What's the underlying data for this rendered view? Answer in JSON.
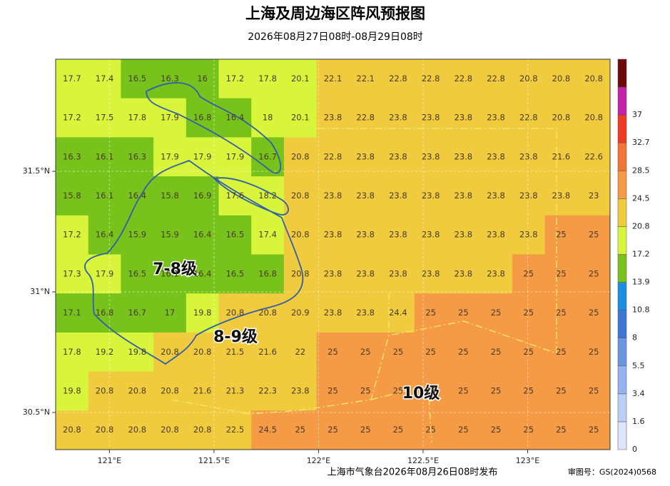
{
  "header": {
    "title": "上海及周边海区阵风预报图",
    "subtitle": "2026年08月27日08时-08月29日08时"
  },
  "map": {
    "grid": [
      [
        17.7,
        17.4,
        16.5,
        16.3,
        16,
        17.2,
        17.8,
        20.1,
        22.1,
        22.1,
        22.8,
        22.8,
        22.8,
        22.8,
        20.8,
        20.8,
        20.8
      ],
      [
        17.2,
        17.5,
        17.8,
        17.9,
        16.8,
        16.4,
        18,
        20.1,
        23.8,
        22.8,
        23.8,
        23.8,
        23.8,
        23.8,
        22.8,
        20.8,
        20.8
      ],
      [
        16.3,
        16.1,
        16.3,
        17.9,
        17.9,
        17.9,
        16.7,
        20.8,
        22.8,
        23.8,
        23.8,
        23.8,
        23.8,
        23.8,
        23.8,
        21.6,
        22.6
      ],
      [
        15.8,
        16.1,
        16.4,
        15.8,
        16.9,
        17.6,
        18.2,
        20.8,
        23.8,
        23.8,
        23.8,
        23.8,
        23.8,
        23.8,
        23.8,
        23.8,
        23
      ],
      [
        17.2,
        16.4,
        15.9,
        15.9,
        16.4,
        16.5,
        17.4,
        20.8,
        23.8,
        23.8,
        23.8,
        23.8,
        23.8,
        23.8,
        23.8,
        25,
        25
      ],
      [
        17.3,
        17.9,
        16.5,
        16.1,
        16.4,
        16.5,
        16.8,
        20.8,
        23.8,
        23.8,
        23.8,
        23.8,
        23.8,
        23.8,
        25,
        25,
        25
      ],
      [
        17.1,
        16.8,
        16.7,
        17,
        19.8,
        20.8,
        20.8,
        20.9,
        23.8,
        23.8,
        24.4,
        25,
        25,
        25,
        25,
        25,
        25
      ],
      [
        17.8,
        19.2,
        19.8,
        20.8,
        20.8,
        21.5,
        21.6,
        22,
        25,
        25,
        25,
        25,
        25,
        25,
        25,
        25,
        25
      ],
      [
        19.8,
        20.8,
        20.8,
        20.8,
        21.6,
        21.3,
        22.3,
        23.8,
        25,
        25,
        25,
        25,
        25,
        25,
        25,
        25,
        25
      ],
      [
        20.8,
        20.8,
        20.8,
        20.8,
        20.8,
        22.5,
        24.5,
        25,
        25,
        25,
        25,
        25,
        25,
        25,
        25,
        25,
        25
      ]
    ],
    "xlim": [
      120.743,
      123.394
    ],
    "ylim": [
      30.346,
      31.965
    ],
    "xticks": [
      {
        "value": 121,
        "label": "121°E"
      },
      {
        "value": 121.5,
        "label": "121.5°E"
      },
      {
        "value": 122,
        "label": "122°E"
      },
      {
        "value": 122.5,
        "label": "122.5°E"
      },
      {
        "value": 123,
        "label": "123°E"
      }
    ],
    "yticks": [
      {
        "value": 30.5,
        "label": "30.5°N"
      },
      {
        "value": 31,
        "label": "31°N"
      },
      {
        "value": 31.5,
        "label": "31.5°N"
      }
    ],
    "zones": [
      "7-8级",
      "8-9级",
      "10级"
    ]
  },
  "colorbar": {
    "levels": [
      0,
      1.6,
      3.4,
      5.5,
      8,
      10.8,
      13.9,
      17.2,
      20.8,
      24.5,
      28.5,
      32.7,
      37
    ],
    "colors": [
      "#dfe6fb",
      "#bcd0f5",
      "#93b4ec",
      "#6a95df",
      "#3f74d4",
      "#1d8fe3",
      "#78c21c",
      "#d8f53c",
      "#f0cb3e",
      "#f59a45",
      "#f47636",
      "#f03a22",
      "#c222a8",
      "#6e0a0c"
    ]
  },
  "footer": {
    "issuer": "上海市气象台2026年08月26日08时发布",
    "approval": "审图号：GS(2024)0568"
  }
}
